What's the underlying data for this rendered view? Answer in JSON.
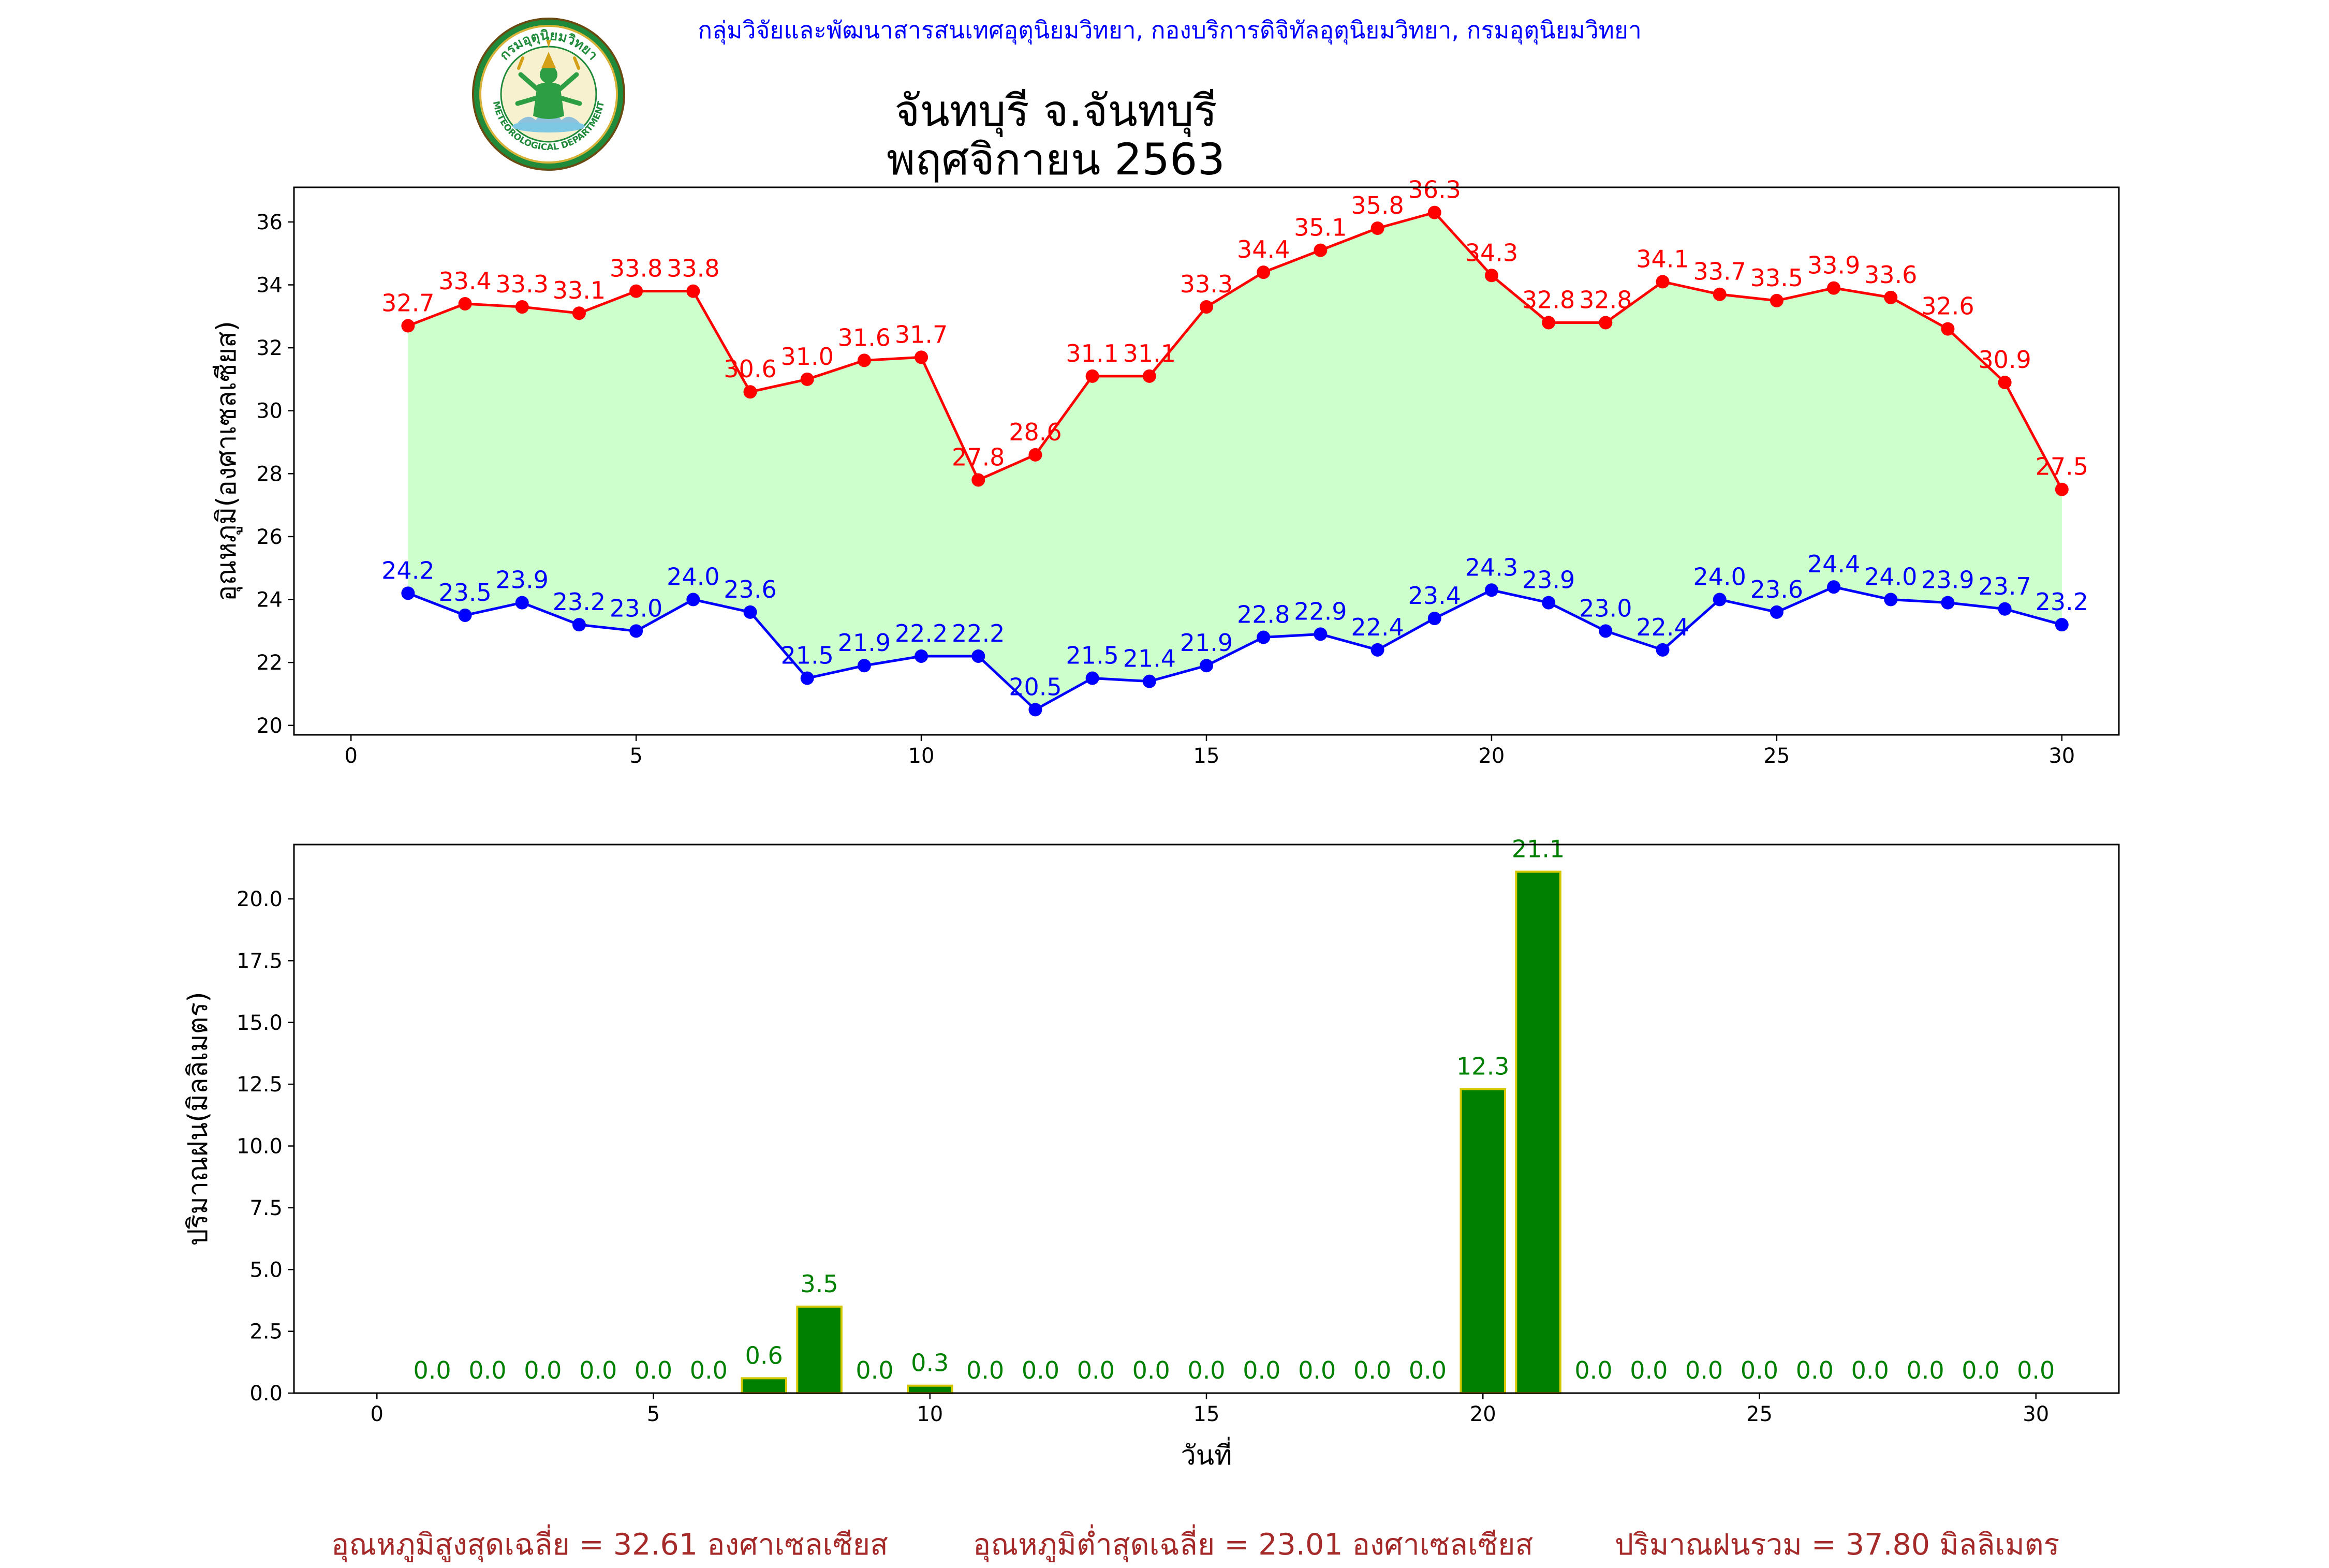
{
  "header": {
    "agency_text": "กลุ่มวิจัยและพัฒนาสารสนเทศอุตุนิยมวิทยา, กองบริการดิจิทัลอุตุนิยมวิทยา, กรมอุตุนิยมวิทยา",
    "logo_text": "กรมอุตุนิยมวิทยา",
    "logo_text_en": "METEOROLOGICAL DEPARTMENT"
  },
  "title": {
    "line1": "จันทบุรี จ.จันทบุรี",
    "line2": "พฤศจิกายน 2563"
  },
  "footer": {
    "avg_max": "อุณหภูมิสูงสุดเฉลี่ย = 32.61 องศาเซลเซียส",
    "avg_min": "อุณหภูมิต่ำสุดเฉลี่ย = 23.01 องศาเซลเซียส",
    "total_rain": "ปริมาณฝนรวม = 37.80 มิลลิเมตร"
  },
  "colors": {
    "max": "#ff0000",
    "min": "#0000ff",
    "fill": "#ccffcc",
    "rain": "#008000",
    "rain_edge": "#d4c800",
    "footer": "#a52a2a",
    "header": "#0000ff"
  },
  "chart_data": [
    {
      "type": "line",
      "x": [
        1,
        2,
        3,
        4,
        5,
        6,
        7,
        8,
        9,
        10,
        11,
        12,
        13,
        14,
        15,
        16,
        17,
        18,
        19,
        20,
        21,
        22,
        23,
        24,
        25,
        26,
        27,
        28,
        29,
        30
      ],
      "series": [
        {
          "values": [
            32.7,
            33.4,
            33.3,
            33.1,
            33.8,
            33.8,
            30.6,
            31.0,
            31.6,
            31.7,
            27.8,
            28.6,
            31.1,
            31.1,
            33.3,
            34.4,
            35.1,
            35.8,
            36.3,
            34.3,
            32.8,
            32.8,
            34.1,
            33.7,
            33.5,
            33.9,
            33.6,
            32.6,
            30.9,
            27.5
          ],
          "color": "#ff0000"
        },
        {
          "values": [
            24.2,
            23.5,
            23.9,
            23.2,
            23.0,
            24.0,
            23.6,
            21.5,
            21.9,
            22.2,
            22.2,
            20.5,
            21.5,
            21.4,
            21.9,
            22.8,
            22.9,
            22.4,
            23.4,
            24.3,
            23.9,
            23.0,
            22.4,
            24.0,
            23.6,
            24.4,
            24.0,
            23.9,
            23.7,
            23.2
          ],
          "color": "#0000ff"
        }
      ],
      "fill_between": true,
      "xlabel": "",
      "ylabel": "อุณหภูมิ(องศาเซลเซียส)",
      "xlim": [
        -1,
        31
      ],
      "ylim": [
        19.7,
        37.1
      ],
      "xticks": [
        0,
        5,
        10,
        15,
        20,
        25,
        30
      ],
      "yticks": [
        20,
        22,
        24,
        26,
        28,
        30,
        32,
        34,
        36
      ],
      "grid": false
    },
    {
      "type": "bar",
      "x": [
        1,
        2,
        3,
        4,
        5,
        6,
        7,
        8,
        9,
        10,
        11,
        12,
        13,
        14,
        15,
        16,
        17,
        18,
        19,
        20,
        21,
        22,
        23,
        24,
        25,
        26,
        27,
        28,
        29,
        30
      ],
      "values": [
        0.0,
        0.0,
        0.0,
        0.0,
        0.0,
        0.0,
        0.6,
        3.5,
        0.0,
        0.3,
        0.0,
        0.0,
        0.0,
        0.0,
        0.0,
        0.0,
        0.0,
        0.0,
        0.0,
        12.3,
        21.1,
        0.0,
        0.0,
        0.0,
        0.0,
        0.0,
        0.0,
        0.0,
        0.0,
        0.0
      ],
      "xlabel": "วันที่",
      "ylabel": "ปริมาณฝน(มิลลิเมตร)",
      "xlim": [
        -1.5,
        31.5
      ],
      "ylim": [
        0,
        22.2
      ],
      "xticks": [
        0,
        5,
        10,
        15,
        20,
        25,
        30
      ],
      "yticks": [
        0.0,
        2.5,
        5.0,
        7.5,
        10.0,
        12.5,
        15.0,
        17.5,
        20.0
      ],
      "grid": false
    }
  ]
}
